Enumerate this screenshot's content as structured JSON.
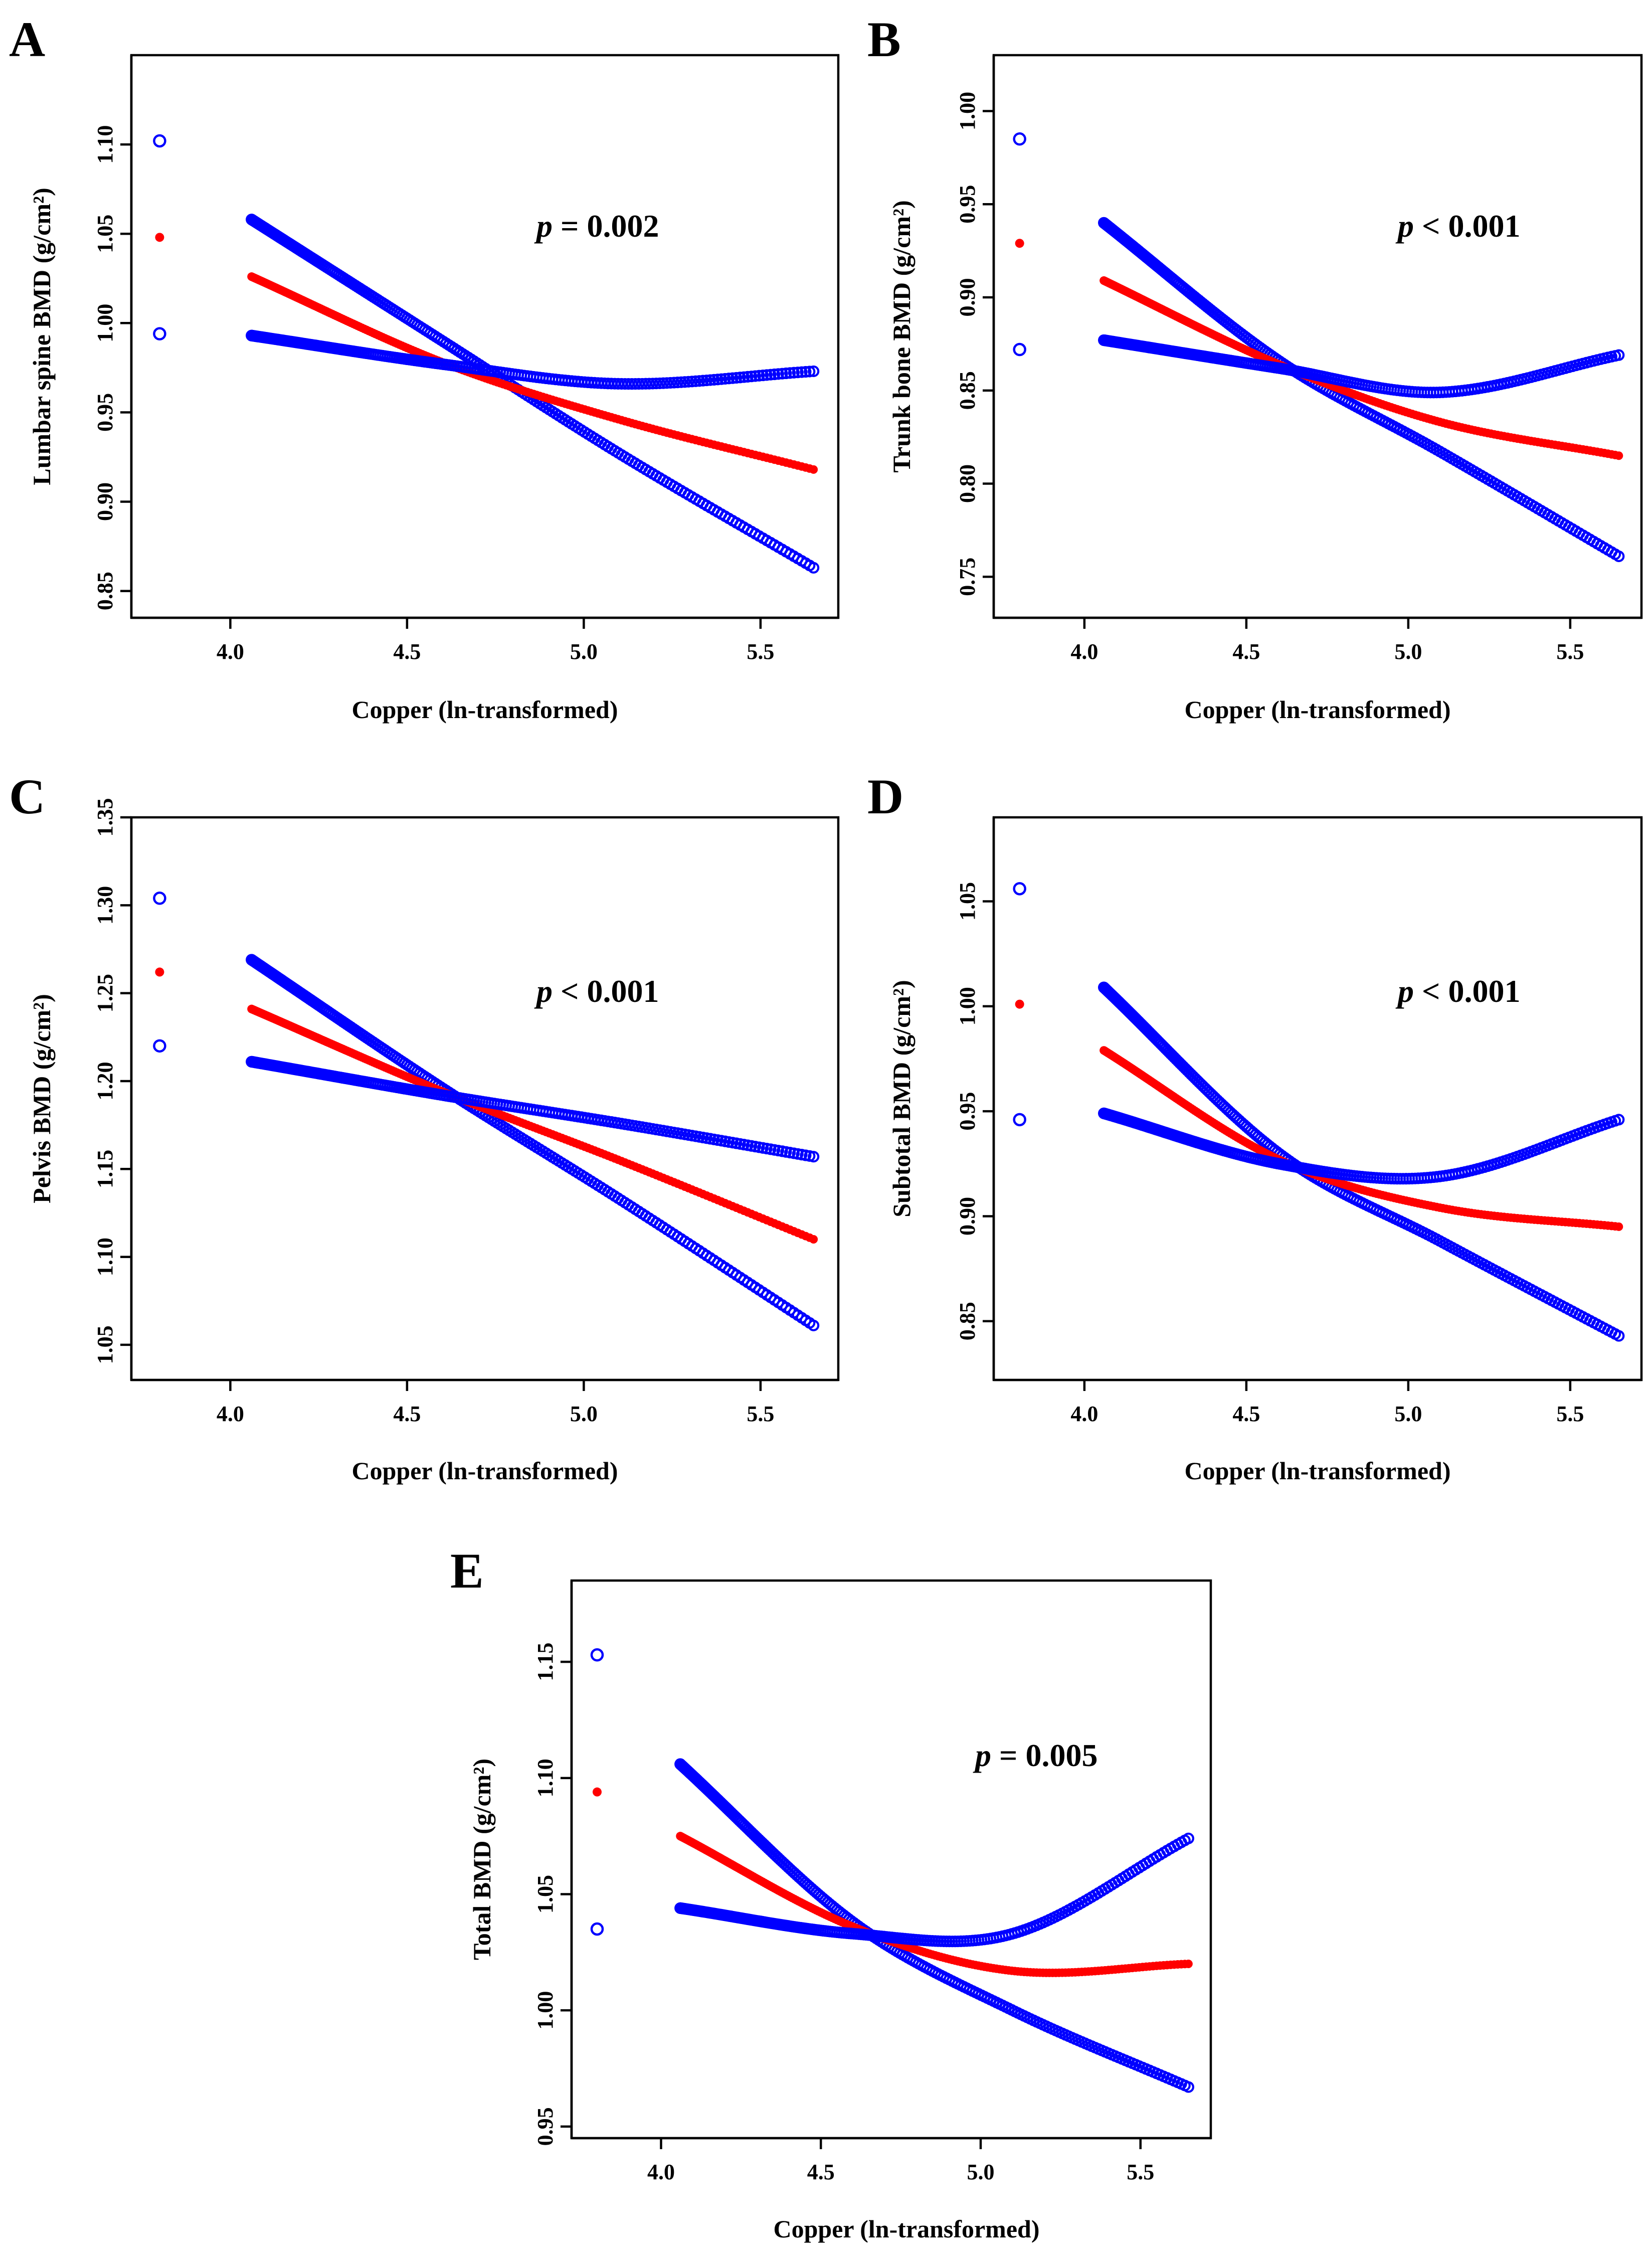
{
  "figure": {
    "colors": {
      "ci_band": "#0000FF",
      "fit": "#FF0000",
      "axis": "#000000",
      "background": "#FFFFFF"
    }
  },
  "chart_data": [
    {
      "panel": "A",
      "type": "scatter",
      "xlabel": "Copper (ln-transformed)",
      "ylabel": "Lumbar spine BMD (g/cm²)",
      "annotation": {
        "p_symbol": "p",
        "p_text": " = 0.002"
      },
      "xlim": [
        3.72,
        5.72
      ],
      "ylim": [
        0.835,
        1.15
      ],
      "xticks": [
        "4.0",
        "4.5",
        "5.0",
        "5.5"
      ],
      "yticks": [
        "0.85",
        "0.90",
        "0.95",
        "1.00",
        "1.05",
        "1.10"
      ],
      "x_range": [
        4.06,
        5.65
      ],
      "outlier": {
        "x": 3.8,
        "fit": 1.048,
        "upper": 1.102,
        "lower": 0.994
      },
      "series": [
        {
          "name": "upper 95% CI",
          "color": "#0000FF",
          "marker": "open-circle",
          "knots": [
            [
              4.06,
              1.058
            ],
            [
              4.6,
              0.99
            ],
            [
              5.1,
              0.927
            ],
            [
              5.65,
              0.863
            ]
          ]
        },
        {
          "name": "fitted",
          "color": "#FF0000",
          "marker": "filled-circle",
          "knots": [
            [
              4.06,
              1.026
            ],
            [
              4.6,
              0.978
            ],
            [
              5.1,
              0.946
            ],
            [
              5.65,
              0.918
            ]
          ]
        },
        {
          "name": "lower 95% CI",
          "color": "#0000FF",
          "marker": "open-circle",
          "knots": [
            [
              4.06,
              0.993
            ],
            [
              4.6,
              0.977
            ],
            [
              5.1,
              0.966
            ],
            [
              5.65,
              0.973
            ]
          ]
        }
      ]
    },
    {
      "panel": "B",
      "type": "scatter",
      "xlabel": "Copper (ln-transformed)",
      "ylabel": "Trunk bone BMD (g/cm²)",
      "annotation": {
        "p_symbol": "p",
        "p_text": " < 0.001"
      },
      "xlim": [
        3.72,
        5.72
      ],
      "ylim": [
        0.728,
        1.03
      ],
      "xticks": [
        "4.0",
        "4.5",
        "5.0",
        "5.5"
      ],
      "yticks": [
        "0.75",
        "0.80",
        "0.85",
        "0.90",
        "0.95",
        "1.00"
      ],
      "x_range": [
        4.06,
        5.65
      ],
      "outlier": {
        "x": 3.8,
        "fit": 0.929,
        "upper": 0.985,
        "lower": 0.872
      },
      "series": [
        {
          "name": "upper 95% CI",
          "color": "#0000FF",
          "marker": "open-circle",
          "knots": [
            [
              4.06,
              0.94
            ],
            [
              4.6,
              0.866
            ],
            [
              5.1,
              0.817
            ],
            [
              5.65,
              0.761
            ]
          ]
        },
        {
          "name": "fitted",
          "color": "#FF0000",
          "marker": "filled-circle",
          "knots": [
            [
              4.06,
              0.909
            ],
            [
              4.6,
              0.864
            ],
            [
              5.1,
              0.833
            ],
            [
              5.65,
              0.815
            ]
          ]
        },
        {
          "name": "lower 95% CI",
          "color": "#0000FF",
          "marker": "open-circle",
          "knots": [
            [
              4.06,
              0.877
            ],
            [
              4.6,
              0.862
            ],
            [
              5.1,
              0.849
            ],
            [
              5.65,
              0.869
            ]
          ]
        }
      ]
    },
    {
      "panel": "C",
      "type": "scatter",
      "xlabel": "Copper (ln-transformed)",
      "ylabel": "Pelvis BMD (g/cm²)",
      "annotation": {
        "p_symbol": "p",
        "p_text": " < 0.001"
      },
      "xlim": [
        3.72,
        5.72
      ],
      "ylim": [
        1.03,
        1.35
      ],
      "xticks": [
        "4.0",
        "4.5",
        "5.0",
        "5.5"
      ],
      "yticks": [
        "1.05",
        "1.10",
        "1.15",
        "1.20",
        "1.25",
        "1.30",
        "1.35"
      ],
      "x_range": [
        4.06,
        5.65
      ],
      "outlier": {
        "x": 3.8,
        "fit": 1.262,
        "upper": 1.304,
        "lower": 1.22
      },
      "series": [
        {
          "name": "upper 95% CI",
          "color": "#0000FF",
          "marker": "open-circle",
          "knots": [
            [
              4.06,
              1.269
            ],
            [
              4.6,
              1.196
            ],
            [
              5.1,
              1.133
            ],
            [
              5.65,
              1.061
            ]
          ]
        },
        {
          "name": "fitted",
          "color": "#FF0000",
          "marker": "filled-circle",
          "knots": [
            [
              4.06,
              1.241
            ],
            [
              4.6,
              1.194
            ],
            [
              5.1,
              1.155
            ],
            [
              5.65,
              1.11
            ]
          ]
        },
        {
          "name": "lower 95% CI",
          "color": "#0000FF",
          "marker": "open-circle",
          "knots": [
            [
              4.06,
              1.211
            ],
            [
              4.6,
              1.192
            ],
            [
              5.1,
              1.176
            ],
            [
              5.65,
              1.157
            ]
          ]
        }
      ]
    },
    {
      "panel": "D",
      "type": "scatter",
      "xlabel": "Copper (ln-transformed)",
      "ylabel": "Subtotal BMD (g/cm²)",
      "annotation": {
        "p_symbol": "p",
        "p_text": " < 0.001"
      },
      "xlim": [
        3.72,
        5.72
      ],
      "ylim": [
        0.822,
        1.09
      ],
      "xticks": [
        "4.0",
        "4.5",
        "5.0",
        "5.5"
      ],
      "yticks": [
        "0.85",
        "0.90",
        "0.95",
        "1.00",
        "1.05"
      ],
      "x_range": [
        4.06,
        5.65
      ],
      "outlier": {
        "x": 3.8,
        "fit": 1.001,
        "upper": 1.056,
        "lower": 0.946
      },
      "series": [
        {
          "name": "upper 95% CI",
          "color": "#0000FF",
          "marker": "open-circle",
          "knots": [
            [
              4.06,
              1.009
            ],
            [
              4.6,
              0.93
            ],
            [
              5.1,
              0.888
            ],
            [
              5.65,
              0.843
            ]
          ]
        },
        {
          "name": "fitted",
          "color": "#FF0000",
          "marker": "filled-circle",
          "knots": [
            [
              4.06,
              0.979
            ],
            [
              4.6,
              0.927
            ],
            [
              5.1,
              0.904
            ],
            [
              5.65,
              0.895
            ]
          ]
        },
        {
          "name": "lower 95% CI",
          "color": "#0000FF",
          "marker": "open-circle",
          "knots": [
            [
              4.06,
              0.949
            ],
            [
              4.6,
              0.925
            ],
            [
              5.1,
              0.919
            ],
            [
              5.65,
              0.946
            ]
          ]
        }
      ]
    },
    {
      "panel": "E",
      "type": "scatter",
      "xlabel": "Copper (ln-transformed)",
      "ylabel": "Total BMD (g/cm²)",
      "annotation": {
        "p_symbol": "p",
        "p_text": " = 0.005"
      },
      "xlim": [
        3.72,
        5.72
      ],
      "ylim": [
        0.945,
        1.185
      ],
      "xticks": [
        "4.0",
        "4.5",
        "5.0",
        "5.5"
      ],
      "yticks": [
        "0.95",
        "1.00",
        "1.05",
        "1.10",
        "1.15"
      ],
      "x_range": [
        4.06,
        5.65
      ],
      "outlier": {
        "x": 3.8,
        "fit": 1.094,
        "upper": 1.153,
        "lower": 1.035
      },
      "series": [
        {
          "name": "upper 95% CI",
          "color": "#0000FF",
          "marker": "open-circle",
          "knots": [
            [
              4.06,
              1.106
            ],
            [
              4.6,
              1.038
            ],
            [
              5.1,
              1.0
            ],
            [
              5.65,
              0.967
            ]
          ]
        },
        {
          "name": "fitted",
          "color": "#FF0000",
          "marker": "filled-circle",
          "knots": [
            [
              4.06,
              1.075
            ],
            [
              4.6,
              1.036
            ],
            [
              5.1,
              1.017
            ],
            [
              5.65,
              1.02
            ]
          ]
        },
        {
          "name": "lower 95% CI",
          "color": "#0000FF",
          "marker": "open-circle",
          "knots": [
            [
              4.06,
              1.044
            ],
            [
              4.6,
              1.033
            ],
            [
              5.1,
              1.033
            ],
            [
              5.65,
              1.074
            ]
          ]
        }
      ]
    }
  ]
}
